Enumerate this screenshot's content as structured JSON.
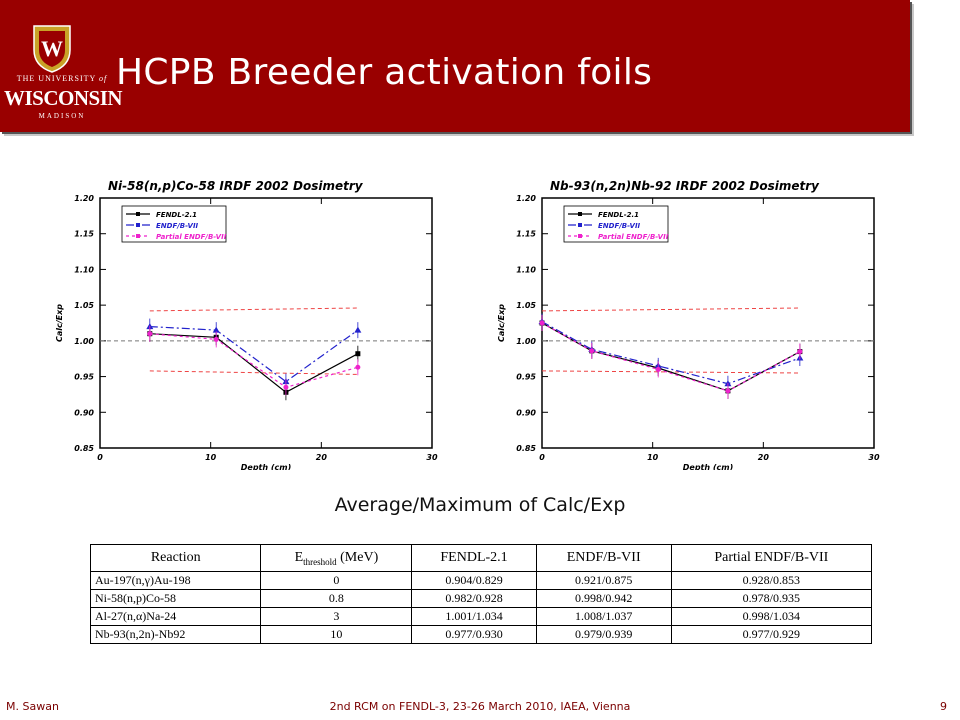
{
  "header": {
    "title": "HCPB Breeder activation foils",
    "logo": {
      "line1": "THE UNIVERSITY",
      "line_of": "of",
      "line2": "WISCONSIN",
      "line3": "MADISON",
      "crest_letter": "W"
    },
    "colors": {
      "banner": "#990000",
      "text": "#ffffff"
    }
  },
  "chart_data": [
    {
      "type": "line",
      "title": "Ni-58(n,p)Co-58 IRDF 2002 Dosimetry",
      "xlabel": "Depth (cm)",
      "ylabel": "Calc/Exp",
      "xlim": [
        0,
        30
      ],
      "ylim": [
        0.85,
        1.2
      ],
      "xticks": [
        0,
        10,
        20,
        30
      ],
      "yticks": [
        0.85,
        0.9,
        0.95,
        1.0,
        1.05,
        1.1,
        1.15,
        1.2
      ],
      "legend_position": "top-left",
      "series": [
        {
          "name": "FENDL-2.1",
          "color": "#000000",
          "dash": "",
          "marker": "square",
          "x": [
            4.5,
            10.5,
            16.8,
            23.3
          ],
          "y": [
            1.01,
            1.005,
            0.928,
            0.982
          ]
        },
        {
          "name": "ENDF/B-VII",
          "color": "#2222cc",
          "dash": "8,3,2,3",
          "marker": "triangle",
          "x": [
            4.5,
            10.5,
            16.8,
            23.3
          ],
          "y": [
            1.02,
            1.015,
            0.943,
            1.015
          ]
        },
        {
          "name": "Partial ENDF/B-VII",
          "color": "#ee22cc",
          "dash": "3,3",
          "marker": "star",
          "x": [
            4.5,
            10.5,
            16.8,
            23.3
          ],
          "y": [
            1.01,
            1.002,
            0.935,
            0.963
          ]
        }
      ],
      "bands": [
        {
          "x": [
            4.5,
            23.3
          ],
          "upper": [
            1.042,
            1.046
          ],
          "lower": [
            0.958,
            0.953
          ]
        }
      ],
      "reference_line": 1.0
    },
    {
      "type": "line",
      "title": "Nb-93(n,2n)Nb-92 IRDF 2002 Dosimetry",
      "xlabel": "Depth (cm)",
      "ylabel": "Calc/Exp",
      "xlim": [
        0,
        30
      ],
      "ylim": [
        0.85,
        1.2
      ],
      "xticks": [
        0,
        10,
        20,
        30
      ],
      "yticks": [
        0.85,
        0.9,
        0.95,
        1.0,
        1.05,
        1.1,
        1.15,
        1.2
      ],
      "legend_position": "top-left",
      "series": [
        {
          "name": "FENDL-2.1",
          "color": "#000000",
          "dash": "",
          "marker": "square",
          "x": [
            0,
            4.5,
            10.5,
            16.8,
            23.3
          ],
          "y": [
            1.025,
            0.986,
            0.962,
            0.93,
            0.985
          ]
        },
        {
          "name": "ENDF/B-VII",
          "color": "#2222cc",
          "dash": "8,3,2,3",
          "marker": "triangle",
          "x": [
            0,
            4.5,
            10.5,
            16.8,
            23.3
          ],
          "y": [
            1.027,
            0.988,
            0.965,
            0.94,
            0.976
          ]
        },
        {
          "name": "Partial ENDF/B-VII",
          "color": "#ee22cc",
          "dash": "3,3",
          "marker": "star",
          "x": [
            0,
            4.5,
            10.5,
            16.8,
            23.3
          ],
          "y": [
            1.025,
            0.986,
            0.96,
            0.93,
            0.985
          ]
        }
      ],
      "bands": [
        {
          "x": [
            0,
            23.3
          ],
          "upper": [
            1.042,
            1.046
          ],
          "lower": [
            0.958,
            0.955
          ]
        }
      ],
      "reference_line": 1.0
    }
  ],
  "subtitle": "Average/Maximum of Calc/Exp",
  "table": {
    "headers": {
      "reaction": "Reaction",
      "threshold_main": "E",
      "threshold_sub": "threshold",
      "threshold_unit": " (MeV)",
      "fendl": "FENDL-2.1",
      "endf": "ENDF/B-VII",
      "partial": "Partial ENDF/B-VII"
    },
    "rows": [
      {
        "reaction": "Au-197(n,γ)Au-198",
        "threshold": "0",
        "fendl": "0.904/0.829",
        "endf": "0.921/0.875",
        "partial": "0.928/0.853"
      },
      {
        "reaction": "Ni-58(n,p)Co-58",
        "threshold": "0.8",
        "fendl": "0.982/0.928",
        "endf": "0.998/0.942",
        "partial": "0.978/0.935"
      },
      {
        "reaction": "Al-27(n,α)Na-24",
        "threshold": "3",
        "fendl": "1.001/1.034",
        "endf": "1.008/1.037",
        "partial": "0.998/1.034"
      },
      {
        "reaction": "Nb-93(n,2n)-Nb92",
        "threshold": "10",
        "fendl": "0.977/0.930",
        "endf": "0.979/0.939",
        "partial": "0.977/0.929"
      }
    ]
  },
  "footer": {
    "author": "M. Sawan",
    "event": "2nd RCM on FENDL-3,  23-26 March 2010, IAEA, Vienna",
    "page": "9"
  }
}
